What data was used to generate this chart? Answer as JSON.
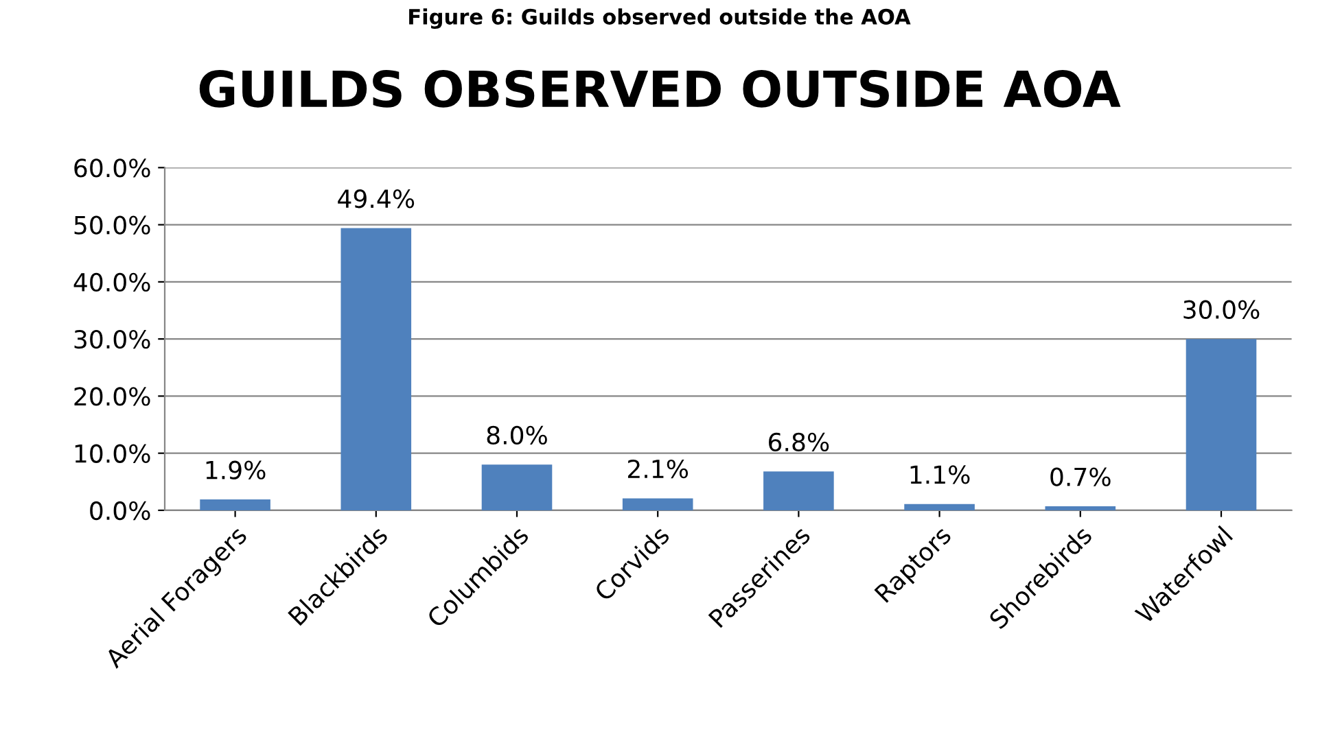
{
  "chart_data": {
    "type": "bar",
    "title": "GUILDS OBSERVED OUTSIDE AOA",
    "annotations": [
      "Figure 6: Guilds observed outside the AOA"
    ],
    "categories": [
      "Aerial Foragers",
      "Blackbirds",
      "Columbids",
      "Corvids",
      "Passerines",
      "Raptors",
      "Shorebirds",
      "Waterfowl"
    ],
    "values": [
      1.9,
      49.4,
      8.0,
      2.1,
      6.8,
      1.1,
      0.7,
      30.0
    ],
    "value_labels": [
      "1.9%",
      "49.4%",
      "8.0%",
      "2.1%",
      "6.8%",
      "1.1%",
      "0.7%",
      "30.0%"
    ],
    "color": "#4f81bd",
    "ylim": [
      0,
      60
    ],
    "yticks": [
      {
        "value": 0,
        "label": "0.0%"
      },
      {
        "value": 10,
        "label": "10.0%"
      },
      {
        "value": 20,
        "label": "20.0%"
      },
      {
        "value": 30,
        "label": "30.0%"
      },
      {
        "value": 40,
        "label": "40.0%"
      },
      {
        "value": 50,
        "label": "50.0%"
      },
      {
        "value": 60,
        "label": "60.0%"
      }
    ],
    "grid": "y",
    "legend": false
  }
}
